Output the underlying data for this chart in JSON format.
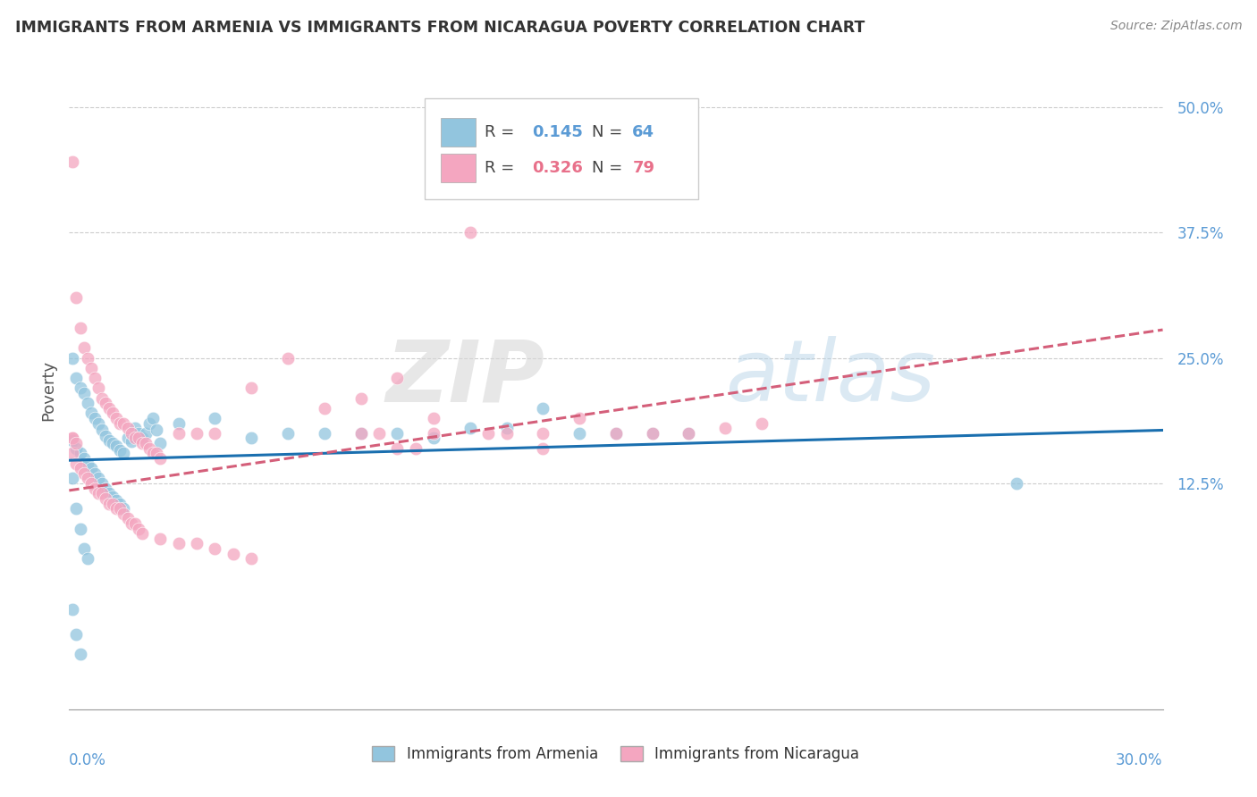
{
  "title": "IMMIGRANTS FROM ARMENIA VS IMMIGRANTS FROM NICARAGUA POVERTY CORRELATION CHART",
  "source": "Source: ZipAtlas.com",
  "ylabel": "Poverty",
  "yticks": [
    0.125,
    0.25,
    0.375,
    0.5
  ],
  "ytick_labels": [
    "12.5%",
    "25.0%",
    "37.5%",
    "50.0%"
  ],
  "xmin": 0.0,
  "xmax": 0.3,
  "ymin": -0.1,
  "ymax": 0.535,
  "armenia_R": 0.145,
  "armenia_N": 64,
  "nicaragua_R": 0.326,
  "nicaragua_N": 79,
  "armenia_color": "#92c5de",
  "nicaragua_color": "#f4a6c0",
  "armenia_line_color": "#1a6faf",
  "nicaragua_line_color": "#d45f7a",
  "armenia_trend": [
    0.148,
    0.178
  ],
  "nicaragua_trend": [
    0.118,
    0.278
  ],
  "armenia_scatter_x": [
    0.001,
    0.002,
    0.003,
    0.004,
    0.005,
    0.006,
    0.007,
    0.008,
    0.009,
    0.01,
    0.011,
    0.012,
    0.013,
    0.014,
    0.015,
    0.016,
    0.017,
    0.018,
    0.019,
    0.02,
    0.021,
    0.022,
    0.023,
    0.024,
    0.025,
    0.001,
    0.002,
    0.003,
    0.004,
    0.005,
    0.006,
    0.007,
    0.008,
    0.009,
    0.01,
    0.011,
    0.012,
    0.013,
    0.014,
    0.015,
    0.001,
    0.002,
    0.003,
    0.004,
    0.005,
    0.001,
    0.002,
    0.003,
    0.03,
    0.04,
    0.05,
    0.06,
    0.07,
    0.08,
    0.09,
    0.1,
    0.11,
    0.12,
    0.13,
    0.14,
    0.15,
    0.16,
    0.17,
    0.26
  ],
  "armenia_scatter_y": [
    0.25,
    0.23,
    0.22,
    0.215,
    0.205,
    0.195,
    0.19,
    0.185,
    0.178,
    0.172,
    0.168,
    0.165,
    0.162,
    0.158,
    0.155,
    0.17,
    0.167,
    0.18,
    0.175,
    0.17,
    0.175,
    0.185,
    0.19,
    0.178,
    0.165,
    0.168,
    0.16,
    0.155,
    0.15,
    0.145,
    0.14,
    0.135,
    0.13,
    0.125,
    0.12,
    0.115,
    0.112,
    0.108,
    0.105,
    0.1,
    0.13,
    0.1,
    0.08,
    0.06,
    0.05,
    0.0,
    -0.025,
    -0.045,
    0.185,
    0.19,
    0.17,
    0.175,
    0.175,
    0.175,
    0.175,
    0.17,
    0.18,
    0.18,
    0.2,
    0.175,
    0.175,
    0.175,
    0.175,
    0.125
  ],
  "nicaragua_scatter_x": [
    0.001,
    0.001,
    0.002,
    0.003,
    0.004,
    0.005,
    0.006,
    0.007,
    0.008,
    0.009,
    0.01,
    0.011,
    0.012,
    0.013,
    0.014,
    0.015,
    0.016,
    0.017,
    0.018,
    0.019,
    0.02,
    0.021,
    0.022,
    0.023,
    0.024,
    0.025,
    0.001,
    0.002,
    0.003,
    0.004,
    0.005,
    0.006,
    0.007,
    0.008,
    0.009,
    0.01,
    0.011,
    0.012,
    0.013,
    0.014,
    0.015,
    0.016,
    0.017,
    0.018,
    0.019,
    0.02,
    0.025,
    0.03,
    0.035,
    0.04,
    0.045,
    0.05,
    0.03,
    0.035,
    0.04,
    0.05,
    0.06,
    0.07,
    0.08,
    0.09,
    0.1,
    0.11,
    0.13,
    0.14,
    0.15,
    0.16,
    0.17,
    0.18,
    0.19,
    0.08,
    0.085,
    0.09,
    0.095,
    0.1,
    0.115,
    0.12,
    0.13,
    0.001,
    0.002
  ],
  "nicaragua_scatter_y": [
    0.445,
    0.17,
    0.31,
    0.28,
    0.26,
    0.25,
    0.24,
    0.23,
    0.22,
    0.21,
    0.205,
    0.2,
    0.195,
    0.19,
    0.185,
    0.185,
    0.18,
    0.175,
    0.17,
    0.17,
    0.165,
    0.165,
    0.16,
    0.155,
    0.155,
    0.15,
    0.155,
    0.145,
    0.14,
    0.135,
    0.13,
    0.125,
    0.12,
    0.115,
    0.115,
    0.11,
    0.105,
    0.105,
    0.1,
    0.1,
    0.095,
    0.09,
    0.085,
    0.085,
    0.08,
    0.075,
    0.07,
    0.065,
    0.065,
    0.06,
    0.055,
    0.05,
    0.175,
    0.175,
    0.175,
    0.22,
    0.25,
    0.2,
    0.21,
    0.23,
    0.19,
    0.375,
    0.175,
    0.19,
    0.175,
    0.175,
    0.175,
    0.18,
    0.185,
    0.175,
    0.175,
    0.16,
    0.16,
    0.175,
    0.175,
    0.175,
    0.16,
    0.17,
    0.165
  ]
}
